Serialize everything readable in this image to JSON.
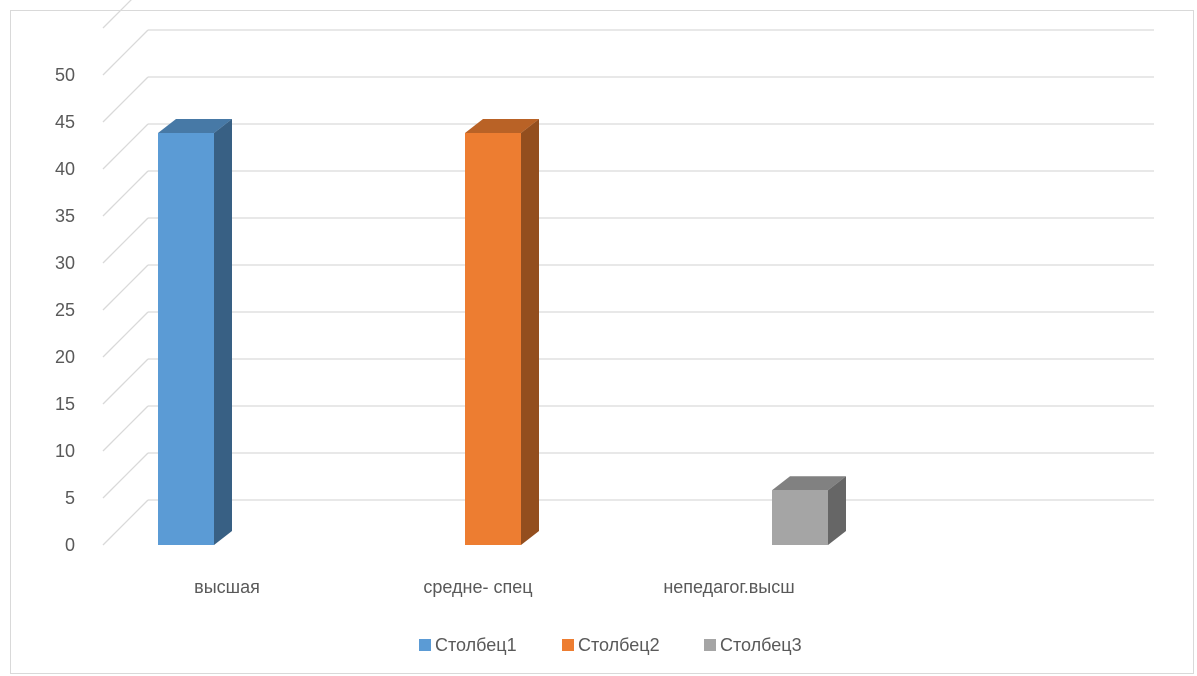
{
  "chart_data": {
    "type": "bar",
    "style": "3d-clustered",
    "categories": [
      "высшая",
      "средне- спец",
      "непедагог.высш"
    ],
    "series": [
      {
        "name": "Столбец1",
        "color": "#5b9bd5",
        "values": [
          45,
          null,
          null
        ]
      },
      {
        "name": "Столбец2",
        "color": "#ed7d31",
        "values": [
          null,
          45,
          null
        ]
      },
      {
        "name": "Столбец3",
        "color": "#a5a5a5",
        "values": [
          null,
          null,
          7
        ]
      }
    ],
    "ylim": [
      0,
      50
    ],
    "ytick_step": 5,
    "grid": true,
    "legend_position": "bottom",
    "title": "",
    "xlabel": "",
    "ylabel": ""
  }
}
